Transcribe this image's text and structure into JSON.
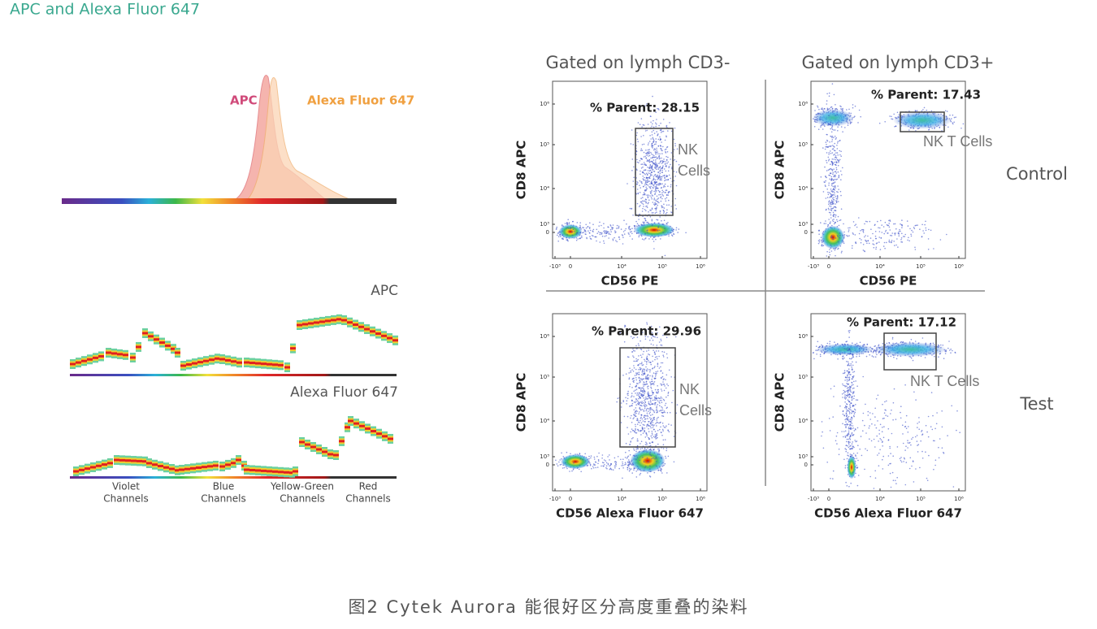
{
  "header": {
    "title": "APC and Alexa Fluor 647"
  },
  "spectrum": {
    "labels": [
      "APC",
      "Alexa Fluor 647"
    ]
  },
  "signatures": {
    "panels": [
      "APC",
      "Alexa Fluor 647"
    ],
    "channels": [
      [
        "Violet",
        "Channels"
      ],
      [
        "Blue",
        "Channels"
      ],
      [
        "Yellow-Green",
        "Channels"
      ],
      [
        "Red",
        "Channels"
      ]
    ]
  },
  "columns": [
    "Gated on lymph CD3-",
    "Gated on lymph CD3+"
  ],
  "rows": [
    "Control",
    "Test"
  ],
  "plots": [
    {
      "gate": "% Parent: 28.15",
      "population": [
        "NK",
        "Cells"
      ],
      "xlabel": "CD56 PE",
      "ylabel": "CD8 APC"
    },
    {
      "gate": "% Parent: 17.43",
      "population": [
        "NK T Cells"
      ],
      "xlabel": "CD56 PE",
      "ylabel": "CD8 APC"
    },
    {
      "gate": "% Parent: 29.96",
      "population": [
        "NK",
        "Cells"
      ],
      "xlabel": "CD56 Alexa Fluor 647",
      "ylabel": "CD8 APC"
    },
    {
      "gate": "% Parent: 17.12",
      "population": [
        "NK T Cells"
      ],
      "xlabel": "CD56 Alexa Fluor 647",
      "ylabel": "CD8 APC"
    }
  ],
  "yticks": [
    "10⁶",
    "10⁵",
    "10⁴",
    "10³",
    "0"
  ],
  "xticks": [
    "-10³",
    "0",
    "10⁴",
    "10⁵",
    "10⁶"
  ],
  "caption": "图2 Cytek Aurora 能很好区分高度重叠的染料"
}
